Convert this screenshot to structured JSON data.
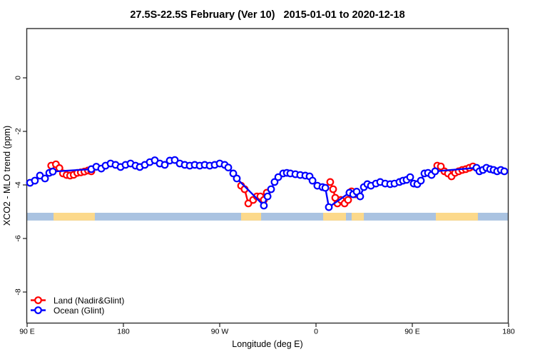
{
  "title": "27.5S-22.5S February (Ver 10)   2015-01-01 to 2020-12-18",
  "chart_data": {
    "type": "line",
    "title": "27.5S-22.5S February (Ver 10)   2015-01-01 to 2020-12-18",
    "xlabel": "Longitude (deg E)",
    "ylabel": "XCO2 - MLO trend (ppm)",
    "grid": false,
    "legend_position": "bottom-left",
    "x_axis_deg_range": [
      90,
      540
    ],
    "ylim": [
      -9.2,
      1.85
    ],
    "x_ticks": [
      {
        "pos": 90,
        "label": "90 E"
      },
      {
        "pos": 180,
        "label": "180"
      },
      {
        "pos": 270,
        "label": "90 W"
      },
      {
        "pos": 360,
        "label": "0"
      },
      {
        "pos": 450,
        "label": "90 E"
      },
      {
        "pos": 540,
        "label": "180"
      }
    ],
    "y_ticks": [
      {
        "pos": 0,
        "label": "0"
      },
      {
        "pos": -2,
        "label": "-2"
      },
      {
        "pos": -4,
        "label": "-4"
      },
      {
        "pos": -6,
        "label": "-6"
      },
      {
        "pos": -8,
        "label": "-8"
      }
    ],
    "surface_band": {
      "ocean_color": "#aac3e1",
      "land_color": "#fcd98b",
      "range_deg": [
        90,
        540
      ],
      "value_range": [
        -5.04,
        -5.33
      ],
      "land_segments_deg": [
        [
          114.7,
          153.3
        ],
        [
          290,
          308.7
        ],
        [
          366.7,
          388
        ],
        [
          393.3,
          404.7
        ],
        [
          472,
          511.3
        ]
      ]
    },
    "series": [
      {
        "name": "Land (Nadir&Glint)",
        "color": "#ff0000",
        "marker": "open-circle",
        "segments": [
          [
            [
              112.5,
              -3.28
            ],
            [
              116.9,
              -3.23
            ],
            [
              120.2,
              -3.37
            ],
            [
              123.5,
              -3.57
            ],
            [
              126.9,
              -3.63
            ],
            [
              130.2,
              -3.65
            ],
            [
              133.5,
              -3.62
            ],
            [
              136.9,
              -3.55
            ],
            [
              140.2,
              -3.53
            ],
            [
              143.5,
              -3.5
            ],
            [
              146.9,
              -3.46
            ],
            [
              150.0,
              -3.49
            ]
          ],
          [
            [
              290.0,
              -4.03
            ],
            [
              293.3,
              -4.16
            ],
            [
              296.7,
              -4.69
            ],
            [
              301.3,
              -4.56
            ],
            [
              304.7,
              -4.43
            ],
            [
              308.0,
              -4.43
            ],
            [
              311.3,
              -4.56
            ],
            [
              314.0,
              -4.29
            ]
          ],
          [
            [
              373.3,
              -3.89
            ],
            [
              376.0,
              -4.16
            ],
            [
              378.0,
              -4.48
            ],
            [
              380.0,
              -4.69
            ],
            [
              383.3,
              -4.56
            ],
            [
              386.7,
              -4.69
            ],
            [
              390.0,
              -4.56
            ],
            [
              393.3,
              -4.24
            ],
            [
              396.7,
              -4.35
            ]
          ],
          [
            [
              473.3,
              -3.28
            ],
            [
              476.7,
              -3.31
            ],
            [
              480.0,
              -3.49
            ],
            [
              483.3,
              -3.57
            ],
            [
              486.7,
              -3.68
            ],
            [
              490.0,
              -3.55
            ],
            [
              493.3,
              -3.49
            ],
            [
              496.7,
              -3.44
            ],
            [
              500.0,
              -3.41
            ],
            [
              503.3,
              -3.36
            ],
            [
              506.7,
              -3.31
            ]
          ]
        ]
      },
      {
        "name": "Ocean (Glint)",
        "color": "#0000ff",
        "marker": "open-circle",
        "segments": [
          [
            [
              92.7,
              -3.92
            ],
            [
              97.3,
              -3.84
            ],
            [
              102.0,
              -3.65
            ],
            [
              106.7,
              -3.76
            ],
            [
              110.7,
              -3.55
            ],
            [
              114.0,
              -3.5
            ],
            [
              150.0,
              -3.41
            ],
            [
              154.7,
              -3.32
            ],
            [
              159.3,
              -3.39
            ],
            [
              163.3,
              -3.28
            ],
            [
              168.0,
              -3.2
            ],
            [
              172.7,
              -3.25
            ],
            [
              177.3,
              -3.33
            ],
            [
              182.0,
              -3.25
            ],
            [
              186.7,
              -3.2
            ],
            [
              191.3,
              -3.28
            ],
            [
              195.3,
              -3.33
            ],
            [
              200.0,
              -3.25
            ],
            [
              204.7,
              -3.15
            ],
            [
              209.3,
              -3.08
            ],
            [
              214.0,
              -3.2
            ],
            [
              218.7,
              -3.25
            ],
            [
              223.3,
              -3.09
            ],
            [
              228.0,
              -3.07
            ],
            [
              232.7,
              -3.2
            ],
            [
              237.3,
              -3.25
            ],
            [
              242.0,
              -3.28
            ],
            [
              246.7,
              -3.25
            ],
            [
              251.3,
              -3.28
            ],
            [
              256.0,
              -3.25
            ],
            [
              260.7,
              -3.28
            ],
            [
              265.3,
              -3.25
            ],
            [
              270.0,
              -3.2
            ],
            [
              274.7,
              -3.25
            ],
            [
              278.0,
              -3.35
            ],
            [
              282.7,
              -3.57
            ],
            [
              286.0,
              -3.76
            ],
            [
              311.3,
              -4.77
            ],
            [
              314.7,
              -4.43
            ],
            [
              318.0,
              -4.16
            ],
            [
              321.3,
              -3.89
            ],
            [
              324.7,
              -3.71
            ],
            [
              329.3,
              -3.57
            ],
            [
              332.7,
              -3.55
            ],
            [
              336.0,
              -3.57
            ],
            [
              340.7,
              -3.6
            ],
            [
              345.3,
              -3.63
            ],
            [
              350.0,
              -3.65
            ],
            [
              354.0,
              -3.68
            ],
            [
              356.7,
              -3.84
            ],
            [
              361.3,
              -4.03
            ],
            [
              366.0,
              -4.08
            ],
            [
              368.7,
              -4.11
            ],
            [
              372.0,
              -4.83
            ],
            [
              391.3,
              -4.29
            ],
            [
              394.7,
              -4.35
            ],
            [
              398.0,
              -4.25
            ],
            [
              401.3,
              -4.43
            ],
            [
              404.7,
              -4.08
            ],
            [
              408.0,
              -3.97
            ],
            [
              411.3,
              -4.03
            ],
            [
              416.0,
              -3.95
            ],
            [
              420.0,
              -3.89
            ],
            [
              424.7,
              -3.95
            ],
            [
              429.3,
              -3.97
            ],
            [
              433.3,
              -3.95
            ],
            [
              438.0,
              -3.89
            ],
            [
              441.3,
              -3.84
            ],
            [
              444.7,
              -3.81
            ],
            [
              448.0,
              -3.71
            ],
            [
              451.3,
              -3.95
            ],
            [
              454.7,
              -3.97
            ],
            [
              458.0,
              -3.84
            ],
            [
              461.3,
              -3.57
            ],
            [
              464.7,
              -3.55
            ],
            [
              468.0,
              -3.63
            ],
            [
              471.3,
              -3.49
            ],
            [
              510.0,
              -3.36
            ],
            [
              512.7,
              -3.49
            ],
            [
              516.0,
              -3.44
            ],
            [
              519.3,
              -3.36
            ],
            [
              522.7,
              -3.41
            ],
            [
              526.0,
              -3.44
            ],
            [
              529.3,
              -3.49
            ],
            [
              532.7,
              -3.44
            ],
            [
              536.0,
              -3.49
            ]
          ]
        ]
      }
    ]
  },
  "legend": {
    "items": [
      {
        "label": "Land (Nadir&Glint)",
        "color": "#ff0000"
      },
      {
        "label": "Ocean (Glint)",
        "color": "#0000ff"
      }
    ]
  }
}
